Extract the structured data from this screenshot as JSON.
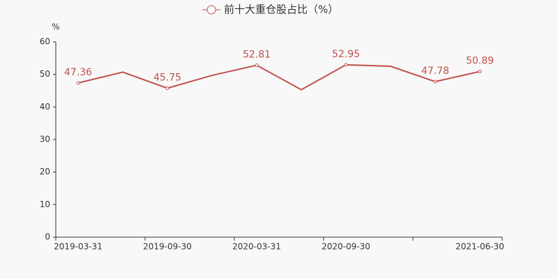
{
  "chart_data": {
    "type": "line",
    "y_label": "%",
    "categories": [
      "2019-03-31",
      null,
      "2019-09-30",
      null,
      "2020-03-31",
      null,
      "2020-09-30",
      null,
      null,
      "2021-06-30"
    ],
    "series": [
      {
        "name": "前十大重仓股占比（%）",
        "color": "#c0504d",
        "values": [
          47.36,
          50.7,
          45.75,
          49.7,
          52.81,
          45.3,
          52.95,
          52.5,
          47.78,
          50.89
        ],
        "value_labels": [
          "47.36",
          null,
          "45.75",
          null,
          "52.81",
          null,
          "52.95",
          null,
          "47.78",
          "50.89"
        ]
      }
    ],
    "ylim": [
      0,
      60
    ],
    "yticks": [
      0,
      10,
      20,
      30,
      40,
      50,
      60
    ],
    "grid": false,
    "legend": "top"
  }
}
